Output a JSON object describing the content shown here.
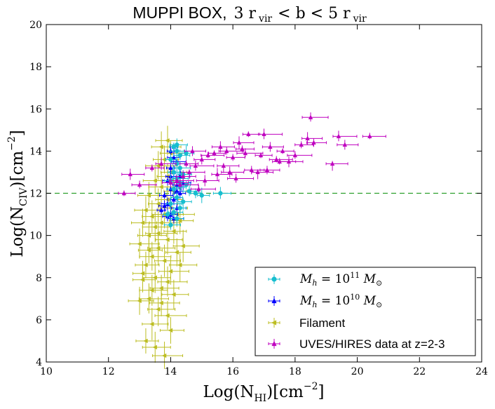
{
  "chart_data": {
    "type": "scatter",
    "title_prefix": "MUPPI BOX,",
    "title_math": "3 r_vir < b < 5 r_vir",
    "title_parts": {
      "a": "3 r",
      "b": "vir",
      "c": "<  b  <  5 r",
      "d": "vir"
    },
    "xlabel": {
      "main": "Log(N",
      "sub": "HI",
      "close": ")[cm",
      "sup": "−2",
      "end": "]"
    },
    "ylabel": {
      "main": "Log(N",
      "sub": "CIV",
      "close": ")[cm",
      "sup": "−2",
      "end": "]"
    },
    "xlim": [
      10,
      24
    ],
    "ylim": [
      4,
      20
    ],
    "xticks": [
      10,
      12,
      14,
      16,
      18,
      20,
      22,
      24
    ],
    "yticks": [
      4,
      6,
      8,
      10,
      12,
      14,
      16,
      18,
      20
    ],
    "reference_line": {
      "y": 12,
      "style": "dashed",
      "color": "#2ca02c"
    },
    "legend_position": "lower-right",
    "series": [
      {
        "name": "M_h = 10^11 M_sun",
        "legend": {
          "a": "M",
          "b": "h",
          "c": " = 10",
          "d": "11",
          "e": " M",
          "f": "⊙"
        },
        "color": "#17becf",
        "marker": "circle",
        "points": [
          [
            14.1,
            14.2
          ],
          [
            14.2,
            14.0
          ],
          [
            14.3,
            13.8
          ],
          [
            14.0,
            13.6
          ],
          [
            14.2,
            13.4
          ],
          [
            14.3,
            13.2
          ],
          [
            14.1,
            13.0
          ],
          [
            14.4,
            12.9
          ],
          [
            14.2,
            12.7
          ],
          [
            14.0,
            12.6
          ],
          [
            14.3,
            12.5
          ],
          [
            14.5,
            12.4
          ],
          [
            14.1,
            12.2
          ],
          [
            14.6,
            12.1
          ],
          [
            14.8,
            12.0
          ],
          [
            15.0,
            11.9
          ],
          [
            15.6,
            12.0
          ],
          [
            14.2,
            11.8
          ],
          [
            14.4,
            11.6
          ],
          [
            14.0,
            11.5
          ],
          [
            14.3,
            11.3
          ],
          [
            14.1,
            11.1
          ],
          [
            13.9,
            11.0
          ],
          [
            14.2,
            10.8
          ],
          [
            14.0,
            10.5
          ],
          [
            14.3,
            12.3
          ],
          [
            14.5,
            13.9
          ],
          [
            14.2,
            14.3
          ]
        ]
      },
      {
        "name": "M_h = 10^10 M_sun",
        "legend": {
          "a": "M",
          "b": "h",
          "c": " = 10",
          "d": "10",
          "e": " M",
          "f": "⊙"
        },
        "color": "#0000ff",
        "marker": "triangle",
        "points": [
          [
            14.0,
            14.0
          ],
          [
            14.1,
            13.7
          ],
          [
            14.2,
            13.5
          ],
          [
            14.0,
            13.2
          ],
          [
            14.1,
            13.0
          ],
          [
            14.3,
            12.8
          ],
          [
            13.9,
            12.6
          ],
          [
            14.2,
            12.4
          ],
          [
            14.0,
            12.2
          ],
          [
            14.3,
            12.0
          ],
          [
            13.8,
            11.9
          ],
          [
            14.1,
            11.7
          ],
          [
            13.9,
            11.5
          ],
          [
            14.2,
            11.3
          ],
          [
            13.7,
            11.2
          ],
          [
            14.0,
            11.0
          ],
          [
            14.1,
            10.8
          ],
          [
            13.9,
            10.9
          ],
          [
            14.4,
            12.5
          ],
          [
            14.2,
            12.1
          ],
          [
            13.8,
            11.4
          ],
          [
            14.0,
            12.8
          ],
          [
            14.1,
            14.2
          ]
        ]
      },
      {
        "name": "Filament",
        "legend_text": "Filament",
        "color": "#bcbd22",
        "marker": "left-triangle",
        "points": [
          [
            13.2,
            5.0
          ],
          [
            13.5,
            4.7
          ],
          [
            13.8,
            4.3
          ],
          [
            14.0,
            5.5
          ],
          [
            13.4,
            5.8
          ],
          [
            13.9,
            6.2
          ],
          [
            13.0,
            6.9
          ],
          [
            13.6,
            6.5
          ],
          [
            13.3,
            7.0
          ],
          [
            14.1,
            7.2
          ],
          [
            13.7,
            7.5
          ],
          [
            13.1,
            7.9
          ],
          [
            13.5,
            8.0
          ],
          [
            14.0,
            8.3
          ],
          [
            13.2,
            8.6
          ],
          [
            13.8,
            8.8
          ],
          [
            13.4,
            9.0
          ],
          [
            14.2,
            9.2
          ],
          [
            13.6,
            9.4
          ],
          [
            13.0,
            9.6
          ],
          [
            13.9,
            9.8
          ],
          [
            13.3,
            10.0
          ],
          [
            14.1,
            10.2
          ],
          [
            13.5,
            10.4
          ],
          [
            13.7,
            10.6
          ],
          [
            14.3,
            10.7
          ],
          [
            13.4,
            10.9
          ],
          [
            13.8,
            11.0
          ],
          [
            13.2,
            11.2
          ],
          [
            14.0,
            11.3
          ],
          [
            13.6,
            11.5
          ],
          [
            13.9,
            11.7
          ],
          [
            13.3,
            11.9
          ],
          [
            14.1,
            12.1
          ],
          [
            13.7,
            12.3
          ],
          [
            13.5,
            12.6
          ],
          [
            13.9,
            12.8
          ],
          [
            14.0,
            13.0
          ],
          [
            13.6,
            13.3
          ],
          [
            13.8,
            13.6
          ],
          [
            14.0,
            13.9
          ],
          [
            13.7,
            14.2
          ],
          [
            13.9,
            14.5
          ],
          [
            14.2,
            11.0
          ],
          [
            13.1,
            8.2
          ],
          [
            13.4,
            7.4
          ],
          [
            13.7,
            6.8
          ],
          [
            13.3,
            9.3
          ],
          [
            14.4,
            9.5
          ],
          [
            13.6,
            10.1
          ],
          [
            13.1,
            10.6
          ],
          [
            14.3,
            8.6
          ],
          [
            13.9,
            7.8
          ]
        ]
      },
      {
        "name": "UVES/HIRES data at z=2-3",
        "legend_text": "UVES/HIRES data at z=2-3",
        "color": "#bf00bf",
        "marker": "triangle",
        "points": [
          [
            12.5,
            12.0
          ],
          [
            12.7,
            12.9
          ],
          [
            13.0,
            12.4
          ],
          [
            13.4,
            13.2
          ],
          [
            13.7,
            13.4
          ],
          [
            14.0,
            12.5
          ],
          [
            14.4,
            12.8
          ],
          [
            14.6,
            13.0
          ],
          [
            14.8,
            13.3
          ],
          [
            15.0,
            13.6
          ],
          [
            15.2,
            13.8
          ],
          [
            15.4,
            13.9
          ],
          [
            15.6,
            14.2
          ],
          [
            15.8,
            14.0
          ],
          [
            16.0,
            13.7
          ],
          [
            16.2,
            14.4
          ],
          [
            16.4,
            13.9
          ],
          [
            16.6,
            13.1
          ],
          [
            16.8,
            13.0
          ],
          [
            17.0,
            14.8
          ],
          [
            17.2,
            14.2
          ],
          [
            17.4,
            13.6
          ],
          [
            17.6,
            14.0
          ],
          [
            17.8,
            13.5
          ],
          [
            18.0,
            13.8
          ],
          [
            18.2,
            14.3
          ],
          [
            18.4,
            14.6
          ],
          [
            18.5,
            15.6
          ],
          [
            18.6,
            14.4
          ],
          [
            19.2,
            13.4
          ],
          [
            19.4,
            14.7
          ],
          [
            19.6,
            14.3
          ],
          [
            20.4,
            14.7
          ],
          [
            16.5,
            14.8
          ],
          [
            15.1,
            12.6
          ],
          [
            14.9,
            12.2
          ],
          [
            14.5,
            13.4
          ],
          [
            15.5,
            12.9
          ],
          [
            16.1,
            12.7
          ],
          [
            17.1,
            13.1
          ],
          [
            15.7,
            13.3
          ],
          [
            14.3,
            12.4
          ],
          [
            14.7,
            14.0
          ],
          [
            17.5,
            13.5
          ],
          [
            16.9,
            13.8
          ],
          [
            15.9,
            13.0
          ],
          [
            14.2,
            12.6
          ],
          [
            16.3,
            14.1
          ]
        ]
      }
    ]
  }
}
